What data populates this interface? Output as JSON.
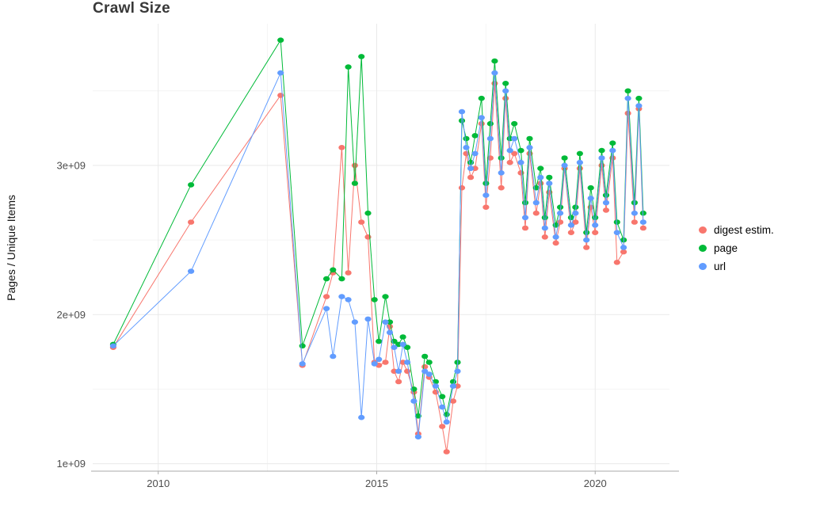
{
  "title": "Crawl Size",
  "chart_data": {
    "type": "line",
    "title": "Crawl Size",
    "xlabel": "",
    "ylabel": "Pages / Unique Items",
    "grid": true,
    "legend_position": "right",
    "xlim": [
      2008.5,
      2021.7
    ],
    "ylim": [
      950000000.0,
      3950000000.0
    ],
    "x_ticks": {
      "values": [
        2010,
        2015,
        2020
      ],
      "labels": [
        "2010",
        "2015",
        "2020"
      ]
    },
    "x_minor_ticks": [
      2012.5,
      2017.5
    ],
    "y_ticks": {
      "values": [
        1000000000.0,
        2000000000.0,
        3000000000.0
      ],
      "labels": [
        "1e+09",
        "2e+09",
        "3e+09"
      ]
    },
    "y_minor_ticks": [
      1500000000.0,
      2500000000.0,
      3500000000.0
    ],
    "x": [
      2008.97,
      2010.75,
      2012.8,
      2013.3,
      2013.85,
      2014.0,
      2014.2,
      2014.35,
      2014.5,
      2014.65,
      2014.8,
      2014.95,
      2015.05,
      2015.2,
      2015.3,
      2015.4,
      2015.5,
      2015.6,
      2015.7,
      2015.85,
      2015.95,
      2016.1,
      2016.2,
      2016.35,
      2016.5,
      2016.6,
      2016.75,
      2016.85,
      2016.95,
      2017.05,
      2017.15,
      2017.25,
      2017.4,
      2017.5,
      2017.6,
      2017.7,
      2017.85,
      2017.95,
      2018.05,
      2018.15,
      2018.3,
      2018.4,
      2018.5,
      2018.65,
      2018.75,
      2018.85,
      2018.95,
      2019.1,
      2019.2,
      2019.3,
      2019.45,
      2019.55,
      2019.65,
      2019.8,
      2019.9,
      2020.0,
      2020.15,
      2020.25,
      2020.4,
      2020.5,
      2020.65,
      2020.75,
      2020.9,
      2021.0,
      2021.1
    ],
    "series": [
      {
        "name": "digest estim.",
        "color": "#F8766D",
        "values": [
          1780000000.0,
          2620000000.0,
          3470000000.0,
          1660000000.0,
          2120000000.0,
          2280000000.0,
          3120000000.0,
          2280000000.0,
          3000000000.0,
          2620000000.0,
          2520000000.0,
          1680000000.0,
          1660000000.0,
          1680000000.0,
          1920000000.0,
          1620000000.0,
          1550000000.0,
          1680000000.0,
          1620000000.0,
          1480000000.0,
          1200000000.0,
          1650000000.0,
          1580000000.0,
          1480000000.0,
          1250000000.0,
          1080000000.0,
          1420000000.0,
          1520000000.0,
          2850000000.0,
          3080000000.0,
          2920000000.0,
          2980000000.0,
          3280000000.0,
          2720000000.0,
          3050000000.0,
          3550000000.0,
          2850000000.0,
          3450000000.0,
          3020000000.0,
          3080000000.0,
          2950000000.0,
          2580000000.0,
          3080000000.0,
          2680000000.0,
          2880000000.0,
          2520000000.0,
          2820000000.0,
          2480000000.0,
          2620000000.0,
          2980000000.0,
          2550000000.0,
          2620000000.0,
          2980000000.0,
          2450000000.0,
          2720000000.0,
          2550000000.0,
          3000000000.0,
          2700000000.0,
          3050000000.0,
          2350000000.0,
          2420000000.0,
          3350000000.0,
          2620000000.0,
          3380000000.0,
          2580000000.0
        ]
      },
      {
        "name": "page",
        "color": "#00BA38",
        "values": [
          1800000000.0,
          2870000000.0,
          3840000000.0,
          1790000000.0,
          2240000000.0,
          2300000000.0,
          2240000000.0,
          3660000000.0,
          2880000000.0,
          3730000000.0,
          2680000000.0,
          2100000000.0,
          1820000000.0,
          2120000000.0,
          1950000000.0,
          1820000000.0,
          1800000000.0,
          1850000000.0,
          1780000000.0,
          1500000000.0,
          1320000000.0,
          1720000000.0,
          1680000000.0,
          1550000000.0,
          1450000000.0,
          1330000000.0,
          1550000000.0,
          1680000000.0,
          3300000000.0,
          3180000000.0,
          3020000000.0,
          3200000000.0,
          3450000000.0,
          2880000000.0,
          3280000000.0,
          3700000000.0,
          3050000000.0,
          3550000000.0,
          3180000000.0,
          3280000000.0,
          3100000000.0,
          2750000000.0,
          3180000000.0,
          2850000000.0,
          2980000000.0,
          2650000000.0,
          2920000000.0,
          2600000000.0,
          2720000000.0,
          3050000000.0,
          2650000000.0,
          2720000000.0,
          3080000000.0,
          2550000000.0,
          2850000000.0,
          2650000000.0,
          3100000000.0,
          2800000000.0,
          3150000000.0,
          2620000000.0,
          2500000000.0,
          3500000000.0,
          2750000000.0,
          3450000000.0,
          2680000000.0
        ]
      },
      {
        "name": "url",
        "color": "#619CFF",
        "values": [
          1790000000.0,
          2290000000.0,
          3620000000.0,
          1670000000.0,
          2040000000.0,
          1720000000.0,
          2120000000.0,
          2100000000.0,
          1950000000.0,
          1310000000.0,
          1970000000.0,
          1670000000.0,
          1700000000.0,
          1950000000.0,
          1880000000.0,
          1780000000.0,
          1620000000.0,
          1800000000.0,
          1680000000.0,
          1420000000.0,
          1180000000.0,
          1620000000.0,
          1600000000.0,
          1520000000.0,
          1380000000.0,
          1280000000.0,
          1520000000.0,
          1620000000.0,
          3360000000.0,
          3120000000.0,
          2980000000.0,
          3080000000.0,
          3320000000.0,
          2800000000.0,
          3180000000.0,
          3620000000.0,
          2950000000.0,
          3500000000.0,
          3100000000.0,
          3180000000.0,
          3020000000.0,
          2650000000.0,
          3120000000.0,
          2750000000.0,
          2920000000.0,
          2580000000.0,
          2880000000.0,
          2520000000.0,
          2680000000.0,
          3000000000.0,
          2600000000.0,
          2680000000.0,
          3020000000.0,
          2500000000.0,
          2780000000.0,
          2600000000.0,
          3050000000.0,
          2750000000.0,
          3100000000.0,
          2550000000.0,
          2450000000.0,
          3450000000.0,
          2680000000.0,
          3400000000.0,
          2620000000.0
        ]
      }
    ]
  }
}
